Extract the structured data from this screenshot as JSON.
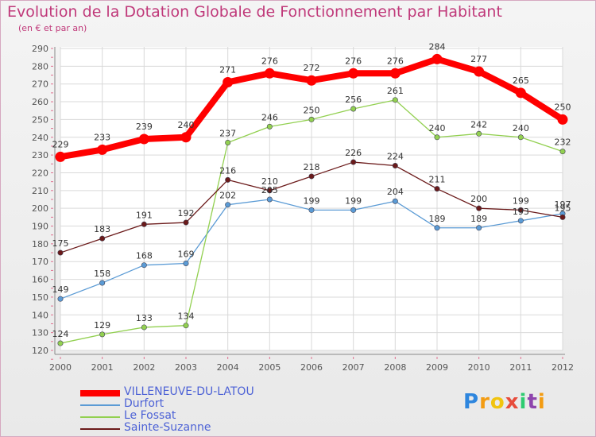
{
  "chart_data": {
    "type": "line",
    "title": "Evolution de la Dotation Globale de Fonctionnement par Habitant",
    "subtitle": "(en € et par an)",
    "xlabel": "",
    "ylabel": "",
    "ylim": [
      120,
      290
    ],
    "yticks": [
      120,
      130,
      140,
      150,
      160,
      170,
      180,
      190,
      200,
      210,
      220,
      230,
      240,
      250,
      260,
      270,
      280,
      290
    ],
    "categories": [
      "2000",
      "2001",
      "2002",
      "2003",
      "2004",
      "2005",
      "2006",
      "2007",
      "2008",
      "2009",
      "2010",
      "2011",
      "2012"
    ],
    "grid": true,
    "legend_position": "bottom-left",
    "series": [
      {
        "name": "VILLENEUVE-DU-LATOU",
        "color": "#ff0000",
        "values": [
          229,
          233,
          239,
          240,
          271,
          276,
          272,
          276,
          276,
          284,
          277,
          265,
          250
        ]
      },
      {
        "name": "Durfort",
        "color": "#5b9bd5",
        "values": [
          149,
          158,
          168,
          169,
          202,
          205,
          199,
          199,
          204,
          189,
          189,
          193,
          197
        ]
      },
      {
        "name": "Le Fossat",
        "color": "#92d050",
        "values": [
          124,
          129,
          133,
          134,
          237,
          246,
          250,
          256,
          261,
          240,
          242,
          240,
          232
        ]
      },
      {
        "name": "Sainte-Suzanne",
        "color": "#6b1a1a",
        "values": [
          175,
          183,
          191,
          192,
          216,
          210,
          218,
          226,
          224,
          211,
          200,
          199,
          195
        ]
      }
    ]
  },
  "branding": {
    "logo_letters": [
      "P",
      "r",
      "o",
      "x",
      "i",
      "t",
      "i"
    ],
    "logo_colors": [
      "#2e86de",
      "#f39c12",
      "#f1c40f",
      "#e74c3c",
      "#2ecc71",
      "#8e44ad",
      "#f39c12"
    ]
  }
}
